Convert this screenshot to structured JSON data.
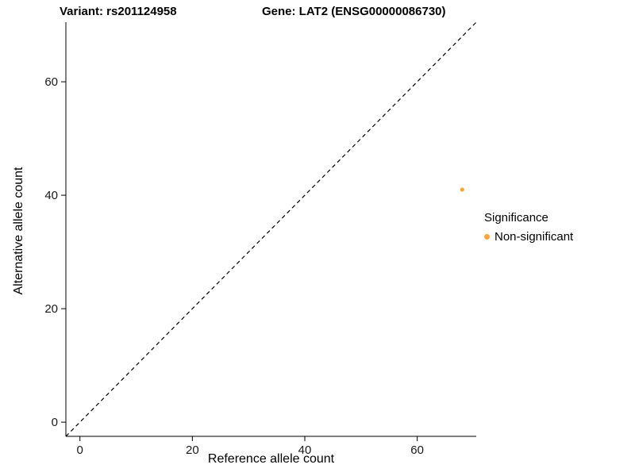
{
  "titles": {
    "variant": "Variant: rs201124958",
    "gene": "Gene: LAT2 (ENSG00000086730)"
  },
  "legend": {
    "title": "Significance",
    "items": [
      {
        "label": "Non-significant",
        "color": "#FAA43A"
      }
    ]
  },
  "chart_data": {
    "type": "scatter",
    "title": "Variant: rs201124958 / Gene: LAT2 (ENSG00000086730)",
    "xlabel": "Reference allele count",
    "ylabel": "Alternative allele count",
    "xlim": [
      -2.5,
      70.5
    ],
    "ylim": [
      -2.5,
      70.5
    ],
    "xticks": [
      0,
      20,
      40,
      60
    ],
    "yticks": [
      0,
      20,
      40,
      60
    ],
    "grid": false,
    "legend_position": "right",
    "identity_line": {
      "shown": true,
      "style": "dashed",
      "color": "#000000"
    },
    "series": [
      {
        "name": "Non-significant",
        "color": "#FAA43A",
        "points": [
          {
            "x": 68,
            "y": 41
          }
        ]
      }
    ]
  }
}
